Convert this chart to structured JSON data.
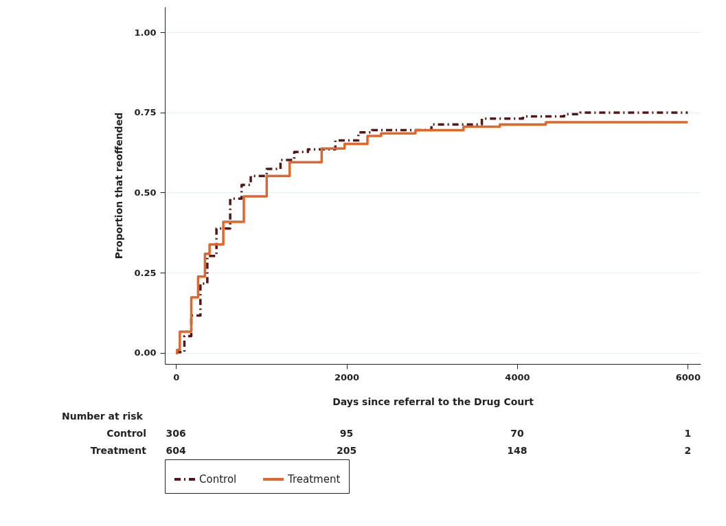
{
  "chart_data": {
    "type": "step",
    "xlabel": "Days since referral to the Drug Court",
    "ylabel": "Proportion that reoffended",
    "xlim": [
      -130,
      6150
    ],
    "ylim": [
      -0.035,
      1.08
    ],
    "xticks": [
      0,
      2000,
      4000,
      6000
    ],
    "yticks": [
      {
        "value": 0,
        "label": "0.00"
      },
      {
        "value": 0.25,
        "label": "0.25"
      },
      {
        "value": 0.5,
        "label": "0.50"
      },
      {
        "value": 0.75,
        "label": "0.75"
      },
      {
        "value": 1,
        "label": "1.00"
      }
    ],
    "grid": "y",
    "legend": "bottom",
    "series": [
      {
        "name": "Control",
        "color": "#541616",
        "line_style": "dashed",
        "x": [
          0,
          19,
          99,
          180,
          287,
          368,
          475,
          636,
          770,
          877,
          1064,
          1226,
          1387,
          1547,
          1869,
          2138,
          2298,
          2995,
          3586,
          4068,
          4551,
          4739,
          6000
        ],
        "values": [
          0,
          0.002,
          0.052,
          0.116,
          0.216,
          0.302,
          0.388,
          0.481,
          0.524,
          0.552,
          0.574,
          0.602,
          0.627,
          0.635,
          0.663,
          0.688,
          0.695,
          0.713,
          0.731,
          0.738,
          0.745,
          0.75,
          0.75
        ]
      },
      {
        "name": "Treatment",
        "color": "#e0662a",
        "line_style": "solid",
        "x": [
          0,
          14,
          46,
          180,
          260,
          340,
          394,
          555,
          796,
          1064,
          1333,
          1708,
          1977,
          2245,
          2405,
          2808,
          3371,
          3797,
          4336,
          6000
        ],
        "values": [
          0,
          0.009,
          0.066,
          0.173,
          0.238,
          0.309,
          0.338,
          0.409,
          0.488,
          0.552,
          0.595,
          0.638,
          0.652,
          0.677,
          0.685,
          0.695,
          0.706,
          0.713,
          0.72,
          0.72
        ]
      }
    ],
    "annotations": [
      "Number at risk",
      "Control",
      "306",
      "95",
      "70",
      "1",
      "Treatment",
      "604",
      "205",
      "148",
      "2"
    ]
  }
}
